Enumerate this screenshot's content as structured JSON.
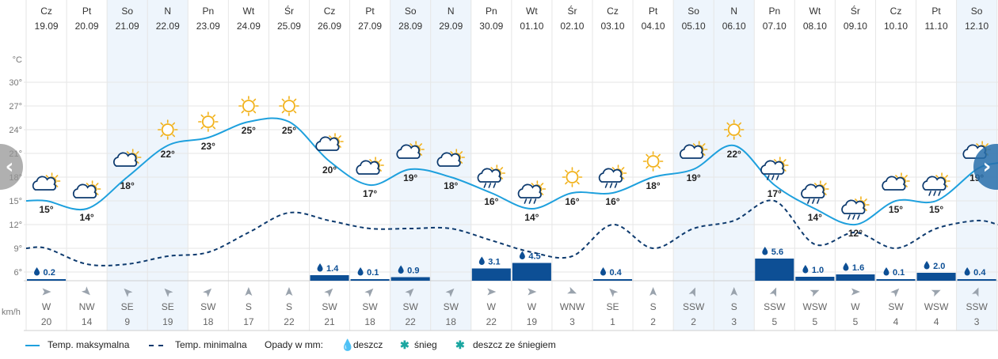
{
  "chart_data": {
    "type": "line",
    "days": [
      {
        "dow": "Cz",
        "date": "19.09",
        "weekend": false,
        "tmax": 15,
        "tmin": 9,
        "precip": 0.2,
        "wind_dir": "W",
        "wind_speed": 20,
        "icon": "sun-cloud-icon"
      },
      {
        "dow": "Pt",
        "date": "20.09",
        "weekend": false,
        "tmax": 14,
        "tmin": 7,
        "precip": null,
        "wind_dir": "NW",
        "wind_speed": 14,
        "icon": "sun-cloud-icon"
      },
      {
        "dow": "So",
        "date": "21.09",
        "weekend": true,
        "tmax": 18,
        "tmin": 7,
        "precip": null,
        "wind_dir": "SE",
        "wind_speed": 9,
        "icon": "sun-cloud-icon"
      },
      {
        "dow": "N",
        "date": "22.09",
        "weekend": true,
        "tmax": 22,
        "tmin": 8,
        "precip": null,
        "wind_dir": "SE",
        "wind_speed": 19,
        "icon": "sun-icon"
      },
      {
        "dow": "Pn",
        "date": "23.09",
        "weekend": false,
        "tmax": 23,
        "tmin": 8.5,
        "precip": null,
        "wind_dir": "SW",
        "wind_speed": 18,
        "icon": "sun-icon"
      },
      {
        "dow": "Wt",
        "date": "24.09",
        "weekend": false,
        "tmax": 25,
        "tmin": 11,
        "precip": null,
        "wind_dir": "S",
        "wind_speed": 17,
        "icon": "sun-icon"
      },
      {
        "dow": "Śr",
        "date": "25.09",
        "weekend": false,
        "tmax": 25,
        "tmin": 13.5,
        "precip": null,
        "wind_dir": "S",
        "wind_speed": 22,
        "icon": "sun-icon"
      },
      {
        "dow": "Cz",
        "date": "26.09",
        "weekend": false,
        "tmax": 20,
        "tmin": 12.5,
        "precip": 1.4,
        "wind_dir": "SW",
        "wind_speed": 21,
        "icon": "sun-cloud-icon"
      },
      {
        "dow": "Pt",
        "date": "27.09",
        "weekend": false,
        "tmax": 17,
        "tmin": 11.5,
        "precip": 0.1,
        "wind_dir": "SW",
        "wind_speed": 18,
        "icon": "sun-cloud-icon"
      },
      {
        "dow": "So",
        "date": "28.09",
        "weekend": true,
        "tmax": 19,
        "tmin": 11.5,
        "precip": 0.9,
        "wind_dir": "SW",
        "wind_speed": 22,
        "icon": "sun-cloud-icon"
      },
      {
        "dow": "N",
        "date": "29.09",
        "weekend": true,
        "tmax": 18,
        "tmin": 11.5,
        "precip": null,
        "wind_dir": "SW",
        "wind_speed": 18,
        "icon": "sun-cloud-icon"
      },
      {
        "dow": "Pn",
        "date": "30.09",
        "weekend": false,
        "tmax": 16,
        "tmin": 10,
        "precip": 3.1,
        "wind_dir": "W",
        "wind_speed": 22,
        "icon": "sun-cloud-rain-icon"
      },
      {
        "dow": "Wt",
        "date": "01.10",
        "weekend": false,
        "tmax": 14,
        "tmin": 8.5,
        "precip": 4.5,
        "wind_dir": "W",
        "wind_speed": 19,
        "icon": "sun-cloud-rain-icon"
      },
      {
        "dow": "Śr",
        "date": "02.10",
        "weekend": false,
        "tmax": 16,
        "tmin": 8,
        "precip": null,
        "wind_dir": "WNW",
        "wind_speed": 3,
        "icon": "sun-icon"
      },
      {
        "dow": "Cz",
        "date": "03.10",
        "weekend": false,
        "tmax": 16,
        "tmin": 12,
        "precip": 0.4,
        "wind_dir": "SE",
        "wind_speed": 1,
        "icon": "sun-cloud-rain-icon"
      },
      {
        "dow": "Pt",
        "date": "04.10",
        "weekend": false,
        "tmax": 18,
        "tmin": 9,
        "precip": null,
        "wind_dir": "S",
        "wind_speed": 2,
        "icon": "sun-icon"
      },
      {
        "dow": "So",
        "date": "05.10",
        "weekend": true,
        "tmax": 19,
        "tmin": 11.5,
        "precip": null,
        "wind_dir": "SSW",
        "wind_speed": 2,
        "icon": "sun-cloud-icon"
      },
      {
        "dow": "N",
        "date": "06.10",
        "weekend": true,
        "tmax": 22,
        "tmin": 12.5,
        "precip": null,
        "wind_dir": "S",
        "wind_speed": 3,
        "icon": "sun-icon"
      },
      {
        "dow": "Pn",
        "date": "07.10",
        "weekend": false,
        "tmax": 17,
        "tmin": 15,
        "precip": 5.6,
        "wind_dir": "SSW",
        "wind_speed": 5,
        "icon": "sun-cloud-rain-icon"
      },
      {
        "dow": "Wt",
        "date": "08.10",
        "weekend": false,
        "tmax": 14,
        "tmin": 9.5,
        "precip": 1.0,
        "wind_dir": "WSW",
        "wind_speed": 5,
        "icon": "sun-cloud-rain-icon"
      },
      {
        "dow": "Śr",
        "date": "09.10",
        "weekend": false,
        "tmax": 12,
        "tmin": 11,
        "precip": 1.6,
        "wind_dir": "W",
        "wind_speed": 5,
        "icon": "sun-cloud-rain-icon"
      },
      {
        "dow": "Cz",
        "date": "10.10",
        "weekend": false,
        "tmax": 15,
        "tmin": 9,
        "precip": 0.1,
        "wind_dir": "SW",
        "wind_speed": 4,
        "icon": "sun-cloud-icon"
      },
      {
        "dow": "Pt",
        "date": "11.10",
        "weekend": false,
        "tmax": 15,
        "tmin": 11.5,
        "precip": 2.0,
        "wind_dir": "WSW",
        "wind_speed": 4,
        "icon": "sun-cloud-rain-icon"
      },
      {
        "dow": "So",
        "date": "12.10",
        "weekend": true,
        "tmax": 19,
        "tmin": 12.5,
        "precip": 0.4,
        "wind_dir": "SSW",
        "wind_speed": 3,
        "icon": "sun-cloud-icon"
      }
    ],
    "y_axis": {
      "unit_label": "°C",
      "ticks": [
        30,
        27,
        24,
        21,
        18,
        15,
        12,
        9,
        6
      ],
      "range": [
        4.6,
        33
      ]
    },
    "precip_range_mm": [
      0,
      6
    ],
    "temp_suffix": "°",
    "wind_unit_label": "km/h",
    "colors": {
      "max_line": "#1ea0dd",
      "min_line": "#0d3a6e",
      "precip_bar": "#0d4f95",
      "weekend_bg": "#eef5fc",
      "grid": "#e6e6e6",
      "text": "#333333"
    },
    "legend": {
      "max_label": "Temp. maksymalna",
      "min_label": "Temp. minimalna",
      "precip_title": "Opady w mm:",
      "rain_label": "deszcz",
      "snow_label": "śnieg",
      "mixed_label": "deszcz ze śniegiem"
    }
  },
  "nav": {
    "prev_icon": "chevron-left-icon",
    "next_icon": "chevron-right-icon",
    "prev_symbol": "‹",
    "next_symbol": "›"
  }
}
